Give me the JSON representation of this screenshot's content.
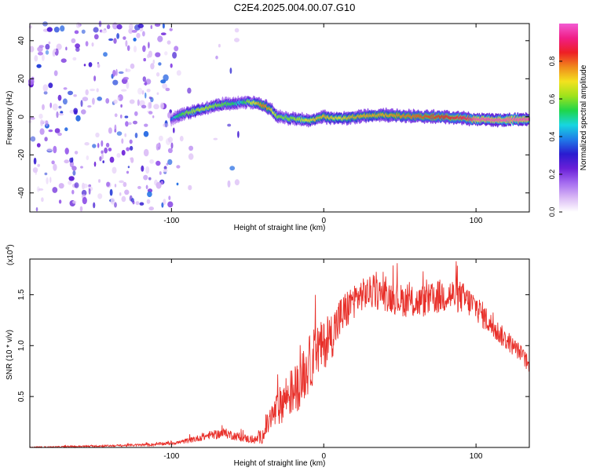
{
  "figure_title": "C2E4.2025.004.00.07.G10",
  "colors": {
    "snr_line": "#e8302a",
    "axis": "#000000",
    "colormap": [
      "#ffffff",
      "#d9b8f5",
      "#a56cf0",
      "#6a1fd8",
      "#2a1bd0",
      "#1f7be8",
      "#17d6e0",
      "#1fd64a",
      "#9ee21c",
      "#f3e21e",
      "#f08a1c",
      "#ee1f25",
      "#f01e86",
      "#f25bd3"
    ]
  },
  "chart_data": [
    {
      "type": "heatmap",
      "title": "C2E4.2025.004.00.07.G10",
      "xlabel": "Height of straight line (km)",
      "ylabel": "Frequency (Hz)",
      "xlim": [
        -193,
        135
      ],
      "ylim": [
        -50,
        49
      ],
      "xticks": [
        -100,
        0,
        100
      ],
      "yticks": [
        -40,
        -20,
        0,
        20,
        40
      ],
      "colorbar": {
        "label": "Normalized spectral amplitude",
        "range": [
          0,
          1
        ],
        "ticks": [
          "0.0",
          "0.2",
          "0.4",
          "0.6",
          "0.8"
        ]
      },
      "noise_regions": [
        {
          "x_range": [
            -193,
            -98
          ],
          "intensity": 0.16
        },
        {
          "x_range": [
            -97,
            -86
          ],
          "intensity": 0.04
        },
        {
          "x_range": [
            -73,
            -68
          ],
          "intensity": 0.04
        },
        {
          "x_range": [
            -63,
            -55
          ],
          "intensity": 0.05
        }
      ],
      "ridge": {
        "x": [
          -100,
          -97,
          -90,
          -80,
          -70,
          -60,
          -55,
          -50,
          -40,
          -35,
          -30,
          -20,
          -10,
          0,
          10,
          20,
          40,
          60,
          80,
          95,
          100,
          120,
          135
        ],
        "freq": [
          -1.5,
          0,
          2,
          4,
          6,
          7,
          7,
          8,
          6,
          4,
          0,
          -1,
          -2,
          0,
          -1,
          0,
          1,
          0,
          0,
          -1,
          -1.5,
          -1.5,
          -1.5
        ],
        "amplitude": [
          0.35,
          0.5,
          0.6,
          0.65,
          0.6,
          0.55,
          0.45,
          0.6,
          0.8,
          0.75,
          0.6,
          0.6,
          0.7,
          0.75,
          0.7,
          0.75,
          0.75,
          0.8,
          0.85,
          0.9,
          0.98,
          0.98,
          0.98
        ]
      }
    },
    {
      "type": "line",
      "xlabel": "Height of straight line (km)",
      "ylabel": "SNR (10 * v/v)",
      "y_multiplier": "(x10",
      "y_multiplier_exp": "4",
      "y_multiplier_close": ")",
      "xlim": [
        -193,
        135
      ],
      "ylim": [
        0,
        1.85
      ],
      "xticks": [
        -100,
        0,
        100
      ],
      "yticks": [
        0.5,
        1.0,
        1.5
      ],
      "ytick_labels": [
        "0.5",
        "1.0",
        "1.5"
      ],
      "series": [
        {
          "x": [
            -193,
            -160,
            -130,
            -110,
            -95,
            -85,
            -75,
            -65,
            -55,
            -45,
            -40,
            -35,
            -30,
            -25,
            -20,
            -15,
            -10,
            -5,
            0,
            5,
            10,
            15,
            20,
            25,
            30,
            40,
            50,
            60,
            70,
            80,
            90,
            100,
            110,
            120,
            130,
            135
          ],
          "y": [
            0.0,
            0.01,
            0.02,
            0.03,
            0.05,
            0.08,
            0.12,
            0.14,
            0.1,
            0.07,
            0.12,
            0.28,
            0.38,
            0.5,
            0.55,
            0.65,
            0.8,
            0.95,
            1.0,
            1.1,
            1.25,
            1.35,
            1.45,
            1.5,
            1.52,
            1.5,
            1.45,
            1.42,
            1.45,
            1.5,
            1.48,
            1.38,
            1.2,
            1.05,
            0.92,
            0.78
          ],
          "noise": [
            0.005,
            0.008,
            0.01,
            0.015,
            0.02,
            0.03,
            0.04,
            0.05,
            0.04,
            0.04,
            0.08,
            0.14,
            0.18,
            0.22,
            0.24,
            0.26,
            0.28,
            0.28,
            0.24,
            0.24,
            0.22,
            0.2,
            0.18,
            0.16,
            0.16,
            0.16,
            0.16,
            0.16,
            0.16,
            0.18,
            0.16,
            0.14,
            0.12,
            0.1,
            0.08,
            0.08
          ]
        }
      ]
    }
  ]
}
